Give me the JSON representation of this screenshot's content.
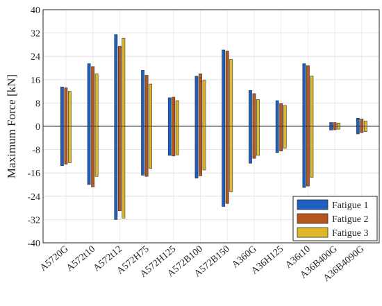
{
  "chart_data": {
    "type": "bar",
    "title": "",
    "xlabel": "",
    "ylabel": "Maximum Force [kN]",
    "ylim": [
      -40,
      40
    ],
    "yticks": [
      -40,
      -32,
      -24,
      -16,
      -8,
      0,
      8,
      16,
      24,
      32,
      40
    ],
    "grid": true,
    "legend_position": "bottom-right",
    "categories": [
      "A5720G",
      "A572t10",
      "A572t12",
      "A572H75",
      "A572H125",
      "A572B100",
      "A572B150",
      "A360G",
      "A36H125",
      "A36t10",
      "A36B400G",
      "A36B4090G"
    ],
    "series": [
      {
        "name": "Fatigue 1",
        "color": "#1f5fbf",
        "positive": [
          13.5,
          21.5,
          31.5,
          19.2,
          9.8,
          17.2,
          26.2,
          12.3,
          8.8,
          21.5,
          1.3,
          2.8
        ],
        "negative": [
          -13.5,
          -20.0,
          -32.0,
          -16.8,
          -10.0,
          -17.8,
          -27.5,
          -12.7,
          -9.0,
          -21.0,
          -1.3,
          -2.6
        ]
      },
      {
        "name": "Fatigue 2",
        "color": "#b5561c",
        "positive": [
          13.2,
          20.5,
          27.5,
          17.5,
          10.0,
          18.0,
          25.8,
          11.2,
          7.8,
          20.8,
          1.3,
          2.5
        ],
        "negative": [
          -13.0,
          -20.8,
          -29.0,
          -17.2,
          -10.2,
          -17.0,
          -26.5,
          -11.0,
          -8.5,
          -20.5,
          -1.2,
          -2.2
        ]
      },
      {
        "name": "Fatigue 3",
        "color": "#e0b72a",
        "positive": [
          12.0,
          18.0,
          30.2,
          14.5,
          8.8,
          15.8,
          23.0,
          9.2,
          7.2,
          17.2,
          1.1,
          1.8
        ],
        "negative": [
          -12.5,
          -17.2,
          -31.5,
          -14.5,
          -9.8,
          -15.0,
          -22.5,
          -10.0,
          -7.5,
          -17.5,
          -1.0,
          -1.8
        ]
      }
    ]
  }
}
